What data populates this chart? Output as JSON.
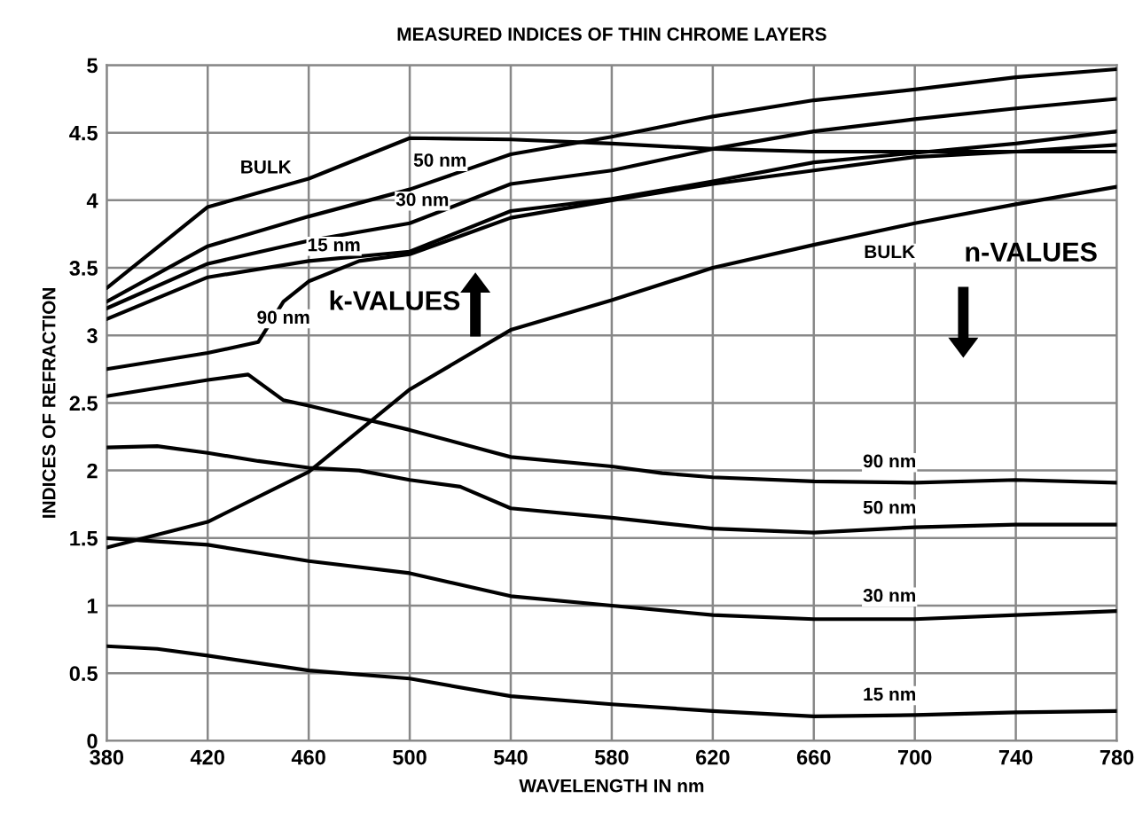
{
  "chart_data": {
    "type": "line",
    "title": "MEASURED INDICES OF THIN CHROME LAYERS",
    "xlabel": "WAVELENGTH IN nm",
    "ylabel": "INDICES OF REFRACTION",
    "xlim": [
      380,
      780
    ],
    "xticks": [
      380,
      420,
      460,
      500,
      540,
      580,
      620,
      660,
      700,
      740,
      780
    ],
    "ylim": [
      0,
      5
    ],
    "yticks": [
      0,
      0.5,
      1,
      1.5,
      2,
      2.5,
      3,
      3.5,
      4,
      4.5,
      5
    ],
    "grid": true,
    "series": [
      {
        "name": "BULK",
        "color": "#000000",
        "x": [
          380,
          420,
          460,
          500,
          540,
          580,
          620,
          660,
          700,
          740,
          780
        ],
        "values": [
          3.35,
          3.95,
          4.16,
          4.46,
          4.45,
          4.42,
          4.38,
          4.36,
          4.36,
          4.36,
          4.36
        ]
      },
      {
        "name": "50 nm",
        "color": "#000000",
        "x": [
          380,
          420,
          460,
          500,
          540,
          580,
          620,
          660,
          700,
          740,
          780
        ],
        "values": [
          3.25,
          3.66,
          3.88,
          4.08,
          4.34,
          4.47,
          4.62,
          4.74,
          4.82,
          4.91,
          4.97
        ]
      },
      {
        "name": "30 nm",
        "color": "#000000",
        "x": [
          380,
          420,
          460,
          500,
          540,
          580,
          620,
          660,
          700,
          740,
          780
        ],
        "values": [
          3.2,
          3.53,
          3.7,
          3.83,
          4.12,
          4.22,
          4.38,
          4.51,
          4.6,
          4.68,
          4.75
        ]
      },
      {
        "name": "15 nm",
        "color": "#000000",
        "x": [
          380,
          420,
          460,
          500,
          540,
          580,
          620,
          660,
          700,
          740,
          780
        ],
        "values": [
          3.12,
          3.43,
          3.55,
          3.62,
          3.92,
          4.01,
          4.14,
          4.28,
          4.35,
          4.42,
          4.51
        ]
      },
      {
        "name": "90 nm",
        "color": "#000000",
        "x": [
          380,
          420,
          440,
          450,
          460,
          480,
          500,
          540,
          580,
          620,
          660,
          700,
          740,
          780
        ],
        "values": [
          2.75,
          2.87,
          2.95,
          3.25,
          3.4,
          3.55,
          3.6,
          3.87,
          4.0,
          4.12,
          4.22,
          4.32,
          4.36,
          4.41
        ]
      },
      {
        "name": "BULK",
        "color": "#000000",
        "x": [
          380,
          420,
          460,
          500,
          540,
          560,
          580,
          620,
          660,
          700,
          740,
          780
        ],
        "values": [
          1.43,
          1.62,
          1.99,
          2.6,
          3.04,
          3.15,
          3.26,
          3.5,
          3.67,
          3.83,
          3.97,
          4.1
        ]
      },
      {
        "name": "90 nm",
        "color": "#000000",
        "x": [
          380,
          420,
          436,
          450,
          460,
          500,
          540,
          580,
          600,
          620,
          660,
          700,
          740,
          780
        ],
        "values": [
          2.55,
          2.67,
          2.71,
          2.52,
          2.48,
          2.3,
          2.1,
          2.03,
          1.98,
          1.95,
          1.92,
          1.91,
          1.93,
          1.91
        ]
      },
      {
        "name": "50 nm",
        "color": "#000000",
        "x": [
          380,
          400,
          420,
          440,
          460,
          480,
          500,
          520,
          540,
          580,
          620,
          660,
          700,
          740,
          780
        ],
        "values": [
          2.17,
          2.18,
          2.13,
          2.07,
          2.02,
          2.0,
          1.93,
          1.88,
          1.72,
          1.65,
          1.57,
          1.54,
          1.58,
          1.6,
          1.6
        ]
      },
      {
        "name": "30 nm",
        "color": "#000000",
        "x": [
          380,
          420,
          460,
          500,
          540,
          580,
          620,
          660,
          700,
          740,
          780
        ],
        "values": [
          1.5,
          1.45,
          1.33,
          1.24,
          1.07,
          1.0,
          0.93,
          0.9,
          0.9,
          0.93,
          0.96
        ]
      },
      {
        "name": "15 nm",
        "color": "#000000",
        "x": [
          380,
          400,
          420,
          460,
          500,
          540,
          580,
          620,
          660,
          700,
          740,
          780
        ],
        "values": [
          0.7,
          0.68,
          0.63,
          0.52,
          0.46,
          0.33,
          0.27,
          0.22,
          0.18,
          0.19,
          0.21,
          0.22
        ]
      }
    ],
    "annotations": [
      "k-VALUES",
      "n-VALUES"
    ]
  }
}
